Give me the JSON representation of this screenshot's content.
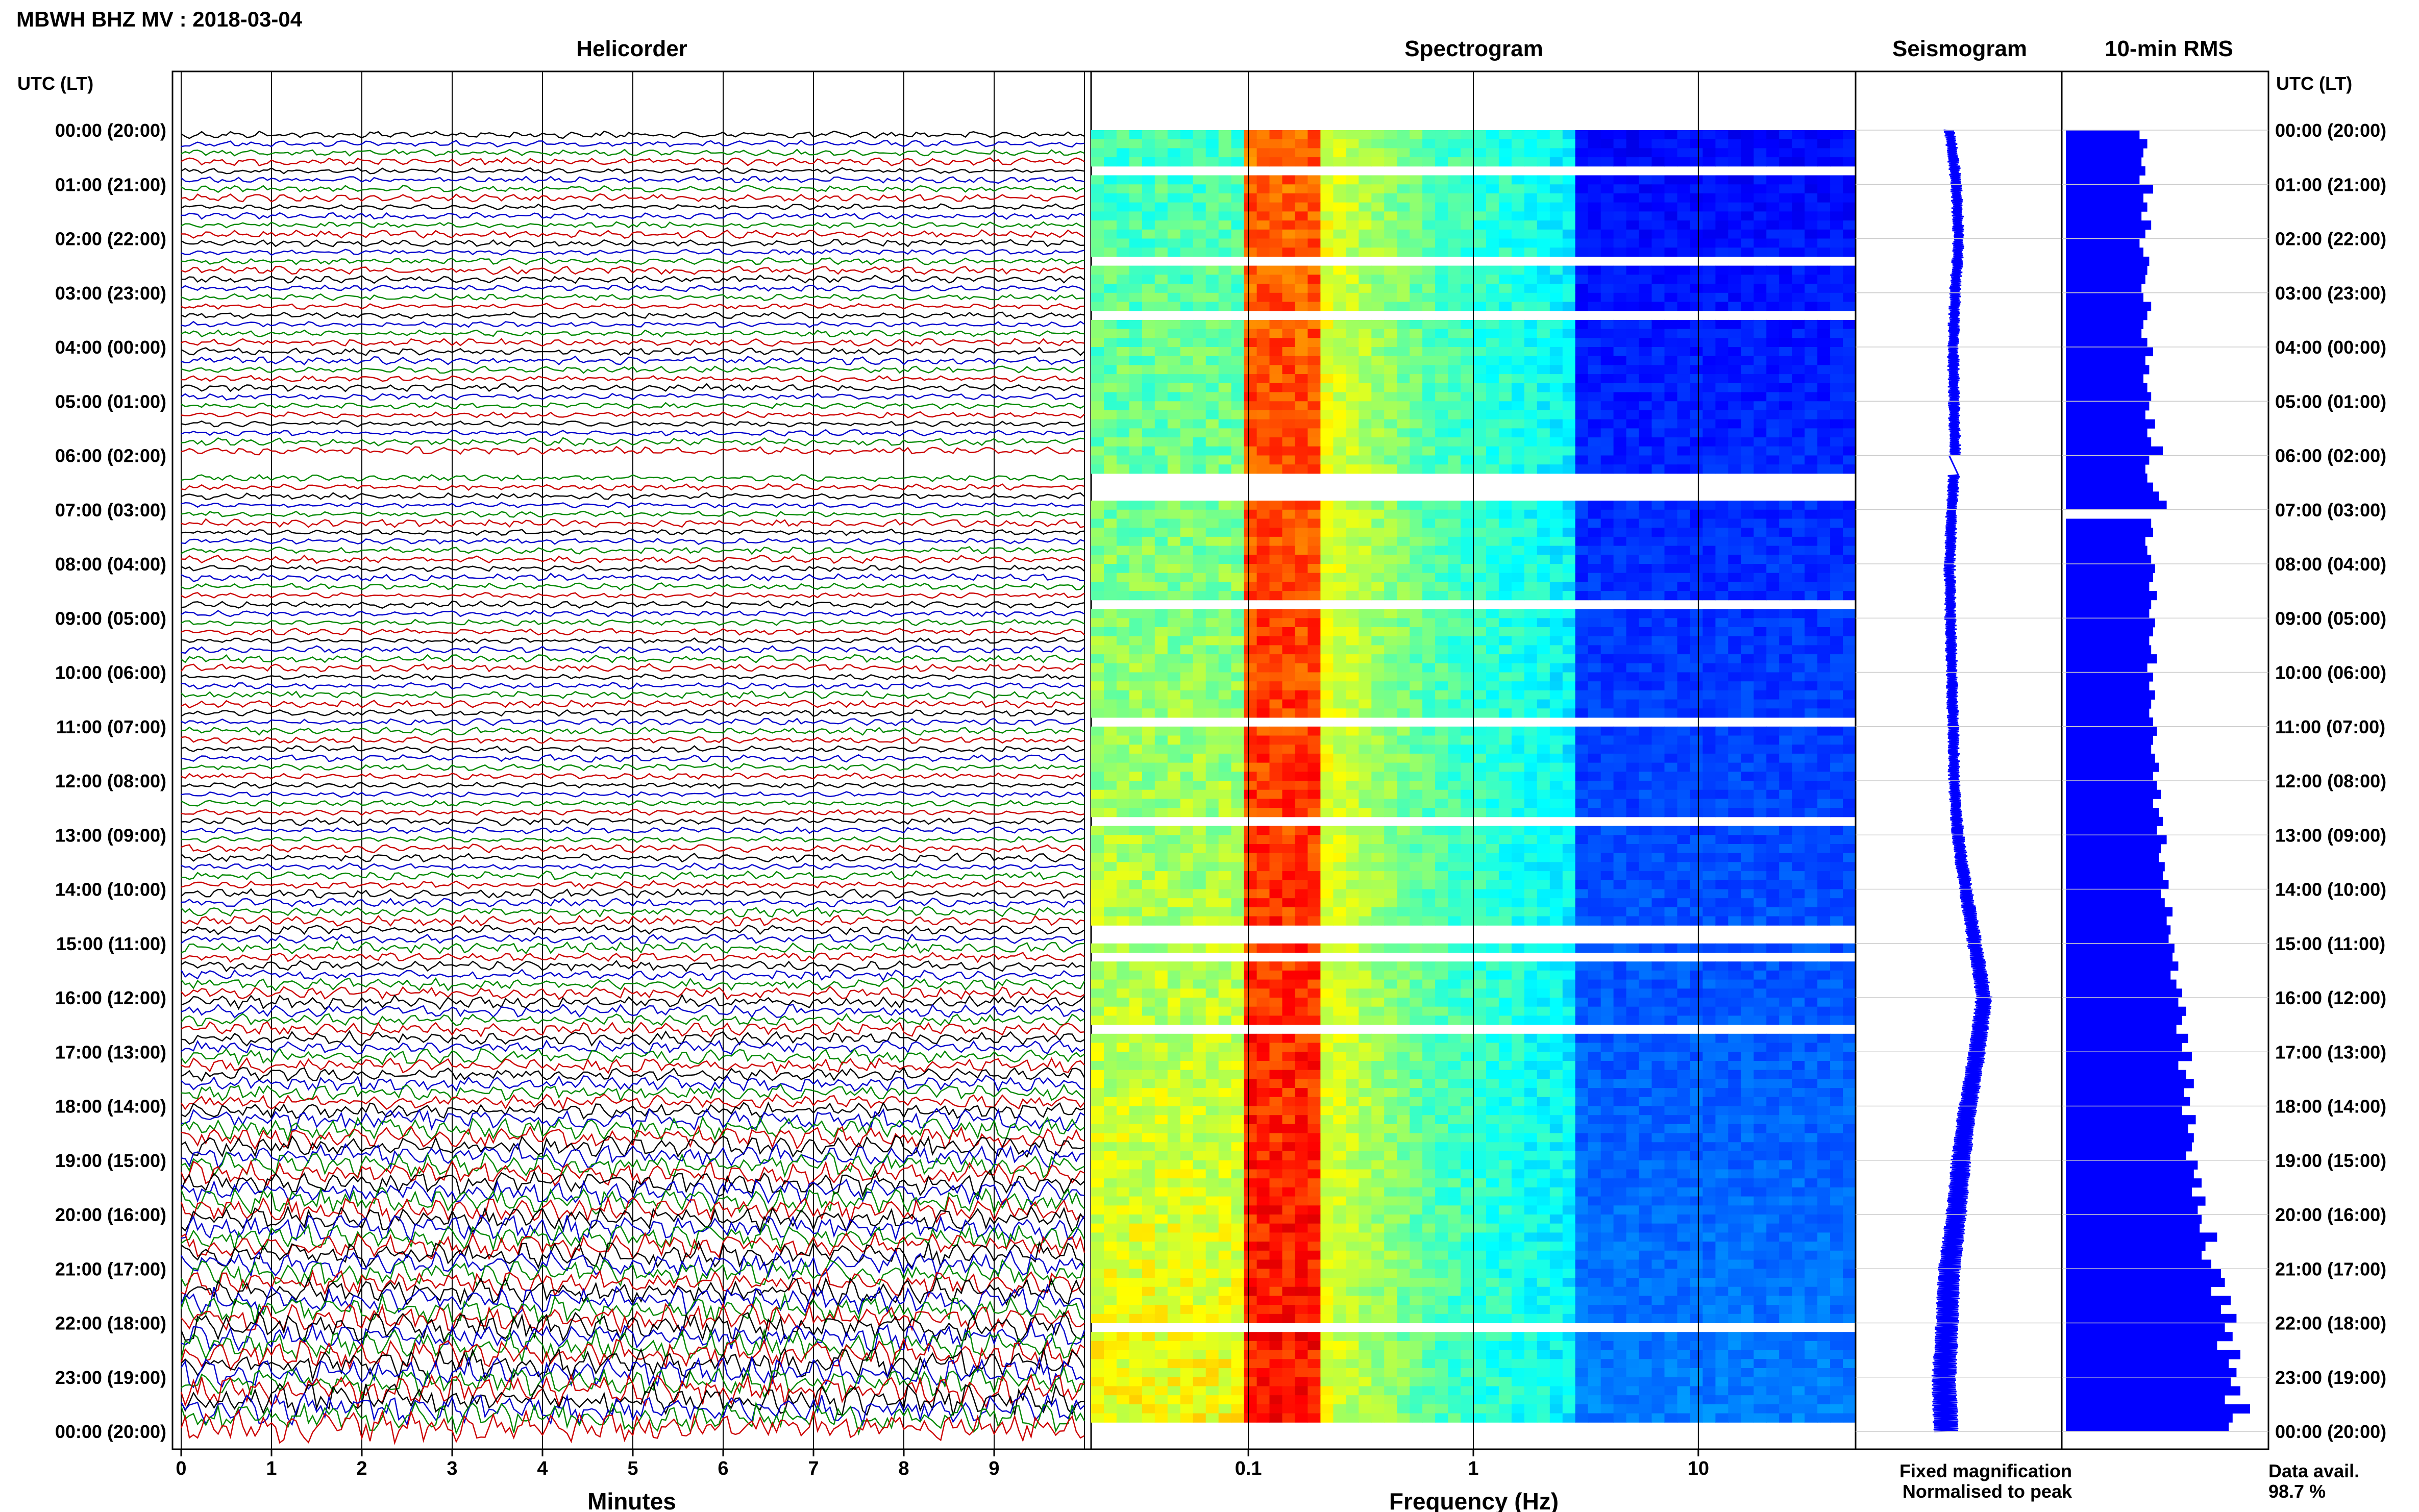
{
  "page": {
    "title": "MBWH BHZ MV : 2018-03-04",
    "utc_label_left": "UTC (LT)",
    "utc_label_right": "UTC (LT)",
    "legend_fixed": "Fixed magnification",
    "legend_normalised": "Normalised to peak",
    "data_avail_label": "Data avail.",
    "data_avail_value": "98.7 %",
    "colors": {
      "fixed": "#0000ff",
      "normalised": "#ff0000",
      "trace_cycle": [
        "#000000",
        "#0000cc",
        "#008800",
        "#cc0000"
      ]
    }
  },
  "chart_data": [
    {
      "type": "line",
      "title": "Helicorder",
      "xlabel": "Minutes",
      "x_ticks": [
        "0",
        "1",
        "2",
        "3",
        "4",
        "5",
        "6",
        "7",
        "8",
        "9"
      ],
      "xlim": [
        0,
        10
      ],
      "time_labels": [
        "00:00 (20:00)",
        "01:00 (21:00)",
        "02:00 (22:00)",
        "03:00 (23:00)",
        "04:00 (00:00)",
        "05:00 (01:00)",
        "06:00 (02:00)",
        "07:00 (03:00)",
        "08:00 (04:00)",
        "09:00 (05:00)",
        "10:00 (06:00)",
        "11:00 (07:00)",
        "12:00 (08:00)",
        "13:00 (09:00)",
        "14:00 (10:00)",
        "15:00 (11:00)",
        "16:00 (12:00)",
        "17:00 (13:00)",
        "18:00 (14:00)",
        "19:00 (15:00)",
        "20:00 (16:00)",
        "21:00 (17:00)",
        "22:00 (18:00)",
        "23:00 (19:00)",
        "00:00 (20:00)"
      ],
      "rows": 144,
      "grid": true
    },
    {
      "type": "heatmap",
      "title": "Spectrogram",
      "xlabel": "Frequency (Hz)",
      "x_scale": "log",
      "x_ticks": [
        "0.1",
        "1",
        "10"
      ],
      "xlim": [
        0.02,
        50
      ],
      "peak_band_hz": [
        0.1,
        0.2
      ]
    },
    {
      "type": "line",
      "title": "Seismogram",
      "hours": [
        0,
        1,
        2,
        3,
        4,
        5,
        6,
        7,
        8,
        9,
        10,
        11,
        12,
        13,
        14,
        15,
        16,
        17,
        18,
        19,
        20,
        21,
        22,
        23,
        24
      ],
      "offset": [
        0.0,
        0.15,
        0.2,
        0.12,
        0.08,
        0.1,
        0.12,
        0.05,
        0.0,
        0.02,
        0.05,
        0.08,
        0.1,
        0.18,
        0.35,
        0.55,
        0.75,
        0.6,
        0.4,
        0.25,
        0.15,
        0.0,
        -0.05,
        -0.12,
        -0.08
      ]
    },
    {
      "type": "bar",
      "title": "10-min RMS",
      "orientation": "horizontal",
      "values_relative": [
        0.38,
        0.42,
        0.4,
        0.39,
        0.41,
        0.38,
        0.45,
        0.4,
        0.42,
        0.39,
        0.44,
        0.41,
        0.38,
        0.4,
        0.43,
        0.42,
        0.41,
        0.39,
        0.4,
        0.44,
        0.42,
        0.4,
        0.39,
        0.42,
        0.45,
        0.41,
        0.43,
        0.4,
        0.42,
        0.44,
        0.43,
        0.41,
        0.46,
        0.42,
        0.44,
        0.5,
        0.43,
        0.41,
        0.42,
        0.45,
        0.48,
        0.52,
        0.0,
        0.44,
        0.45,
        0.41,
        0.42,
        0.44,
        0.46,
        0.45,
        0.43,
        0.47,
        0.44,
        0.43,
        0.46,
        0.45,
        0.43,
        0.44,
        0.47,
        0.42,
        0.45,
        0.43,
        0.46,
        0.44,
        0.43,
        0.45,
        0.47,
        0.45,
        0.44,
        0.46,
        0.48,
        0.45,
        0.47,
        0.49,
        0.45,
        0.48,
        0.5,
        0.47,
        0.52,
        0.49,
        0.48,
        0.51,
        0.5,
        0.53,
        0.49,
        0.51,
        0.55,
        0.52,
        0.54,
        0.53,
        0.56,
        0.55,
        0.58,
        0.54,
        0.57,
        0.6,
        0.58,
        0.62,
        0.6,
        0.57,
        0.63,
        0.6,
        0.65,
        0.58,
        0.62,
        0.66,
        0.61,
        0.64,
        0.6,
        0.67,
        0.63,
        0.66,
        0.65,
        0.62,
        0.68,
        0.66,
        0.7,
        0.65,
        0.72,
        0.68,
        0.7,
        0.69,
        0.78,
        0.72,
        0.7,
        0.75,
        0.8,
        0.82,
        0.75,
        0.85,
        0.8,
        0.88,
        0.82,
        0.86,
        0.78,
        0.9,
        0.84,
        0.88,
        0.85,
        0.9,
        0.82,
        0.95,
        0.86,
        0.84
      ]
    }
  ]
}
